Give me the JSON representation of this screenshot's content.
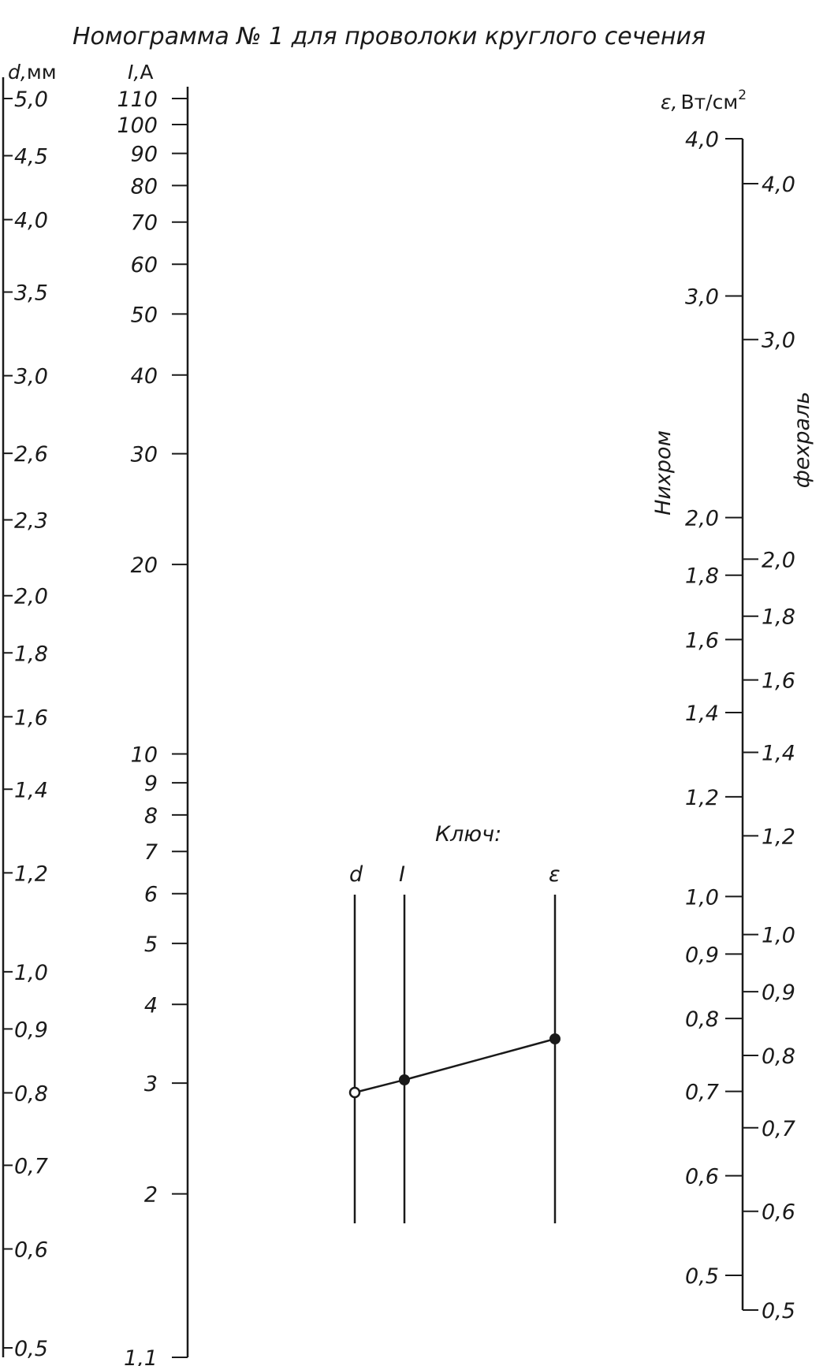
{
  "title": "Номограмма № 1 для проволоки круглого сечения",
  "axes": {
    "d": {
      "symbol": "d,",
      "unit": "мм",
      "ticks": [
        {
          "label": "5,0",
          "value": 5.0
        },
        {
          "label": "4,5",
          "value": 4.5
        },
        {
          "label": "4,0",
          "value": 4.0
        },
        {
          "label": "3,5",
          "value": 3.5
        },
        {
          "label": "3,0",
          "value": 3.0
        },
        {
          "label": "2,6",
          "value": 2.6
        },
        {
          "label": "2,3",
          "value": 2.3
        },
        {
          "label": "2,0",
          "value": 2.0
        },
        {
          "label": "1,8",
          "value": 1.8
        },
        {
          "label": "1,6",
          "value": 1.6
        },
        {
          "label": "1,4",
          "value": 1.4
        },
        {
          "label": "1,2",
          "value": 1.2
        },
        {
          "label": "1,0",
          "value": 1.0
        },
        {
          "label": "0,9",
          "value": 0.9
        },
        {
          "label": "0,8",
          "value": 0.8
        },
        {
          "label": "0,7",
          "value": 0.7
        },
        {
          "label": "0,6",
          "value": 0.6
        },
        {
          "label": "0,5",
          "value": 0.5
        }
      ]
    },
    "I": {
      "symbol": "I,",
      "unit": "А",
      "ticks": [
        {
          "label": "110",
          "value": 110
        },
        {
          "label": "100",
          "value": 100
        },
        {
          "label": "90",
          "value": 90
        },
        {
          "label": "80",
          "value": 80
        },
        {
          "label": "70",
          "value": 70
        },
        {
          "label": "60",
          "value": 60
        },
        {
          "label": "50",
          "value": 50
        },
        {
          "label": "40",
          "value": 40
        },
        {
          "label": "30",
          "value": 30
        },
        {
          "label": "20",
          "value": 20
        },
        {
          "label": "10",
          "value": 10
        },
        {
          "label": "9",
          "value": 9
        },
        {
          "label": "8",
          "value": 8
        },
        {
          "label": "7",
          "value": 7
        },
        {
          "label": "6",
          "value": 6
        },
        {
          "label": "5",
          "value": 5
        },
        {
          "label": "4",
          "value": 4
        },
        {
          "label": "3",
          "value": 3
        },
        {
          "label": "2",
          "value": 2
        },
        {
          "label": "1,1",
          "value": 1.1
        }
      ]
    },
    "eps": {
      "symbol": "ε,",
      "unit": "Вт/см",
      "unit_sup": "2",
      "nichrome": {
        "name": "Нихром",
        "ticks": [
          {
            "label": "4,0",
            "value": 4.0
          },
          {
            "label": "3,0",
            "value": 3.0
          },
          {
            "label": "2,0",
            "value": 2.0
          },
          {
            "label": "1,8",
            "value": 1.8
          },
          {
            "label": "1,6",
            "value": 1.6
          },
          {
            "label": "1,4",
            "value": 1.4
          },
          {
            "label": "1,2",
            "value": 1.2
          },
          {
            "label": "1,0",
            "value": 1.0
          },
          {
            "label": "0,9",
            "value": 0.9
          },
          {
            "label": "0,8",
            "value": 0.8
          },
          {
            "label": "0,7",
            "value": 0.7
          },
          {
            "label": "0,6",
            "value": 0.6
          },
          {
            "label": "0,5",
            "value": 0.5
          }
        ]
      },
      "fechral": {
        "name": "фехраль",
        "ticks": [
          {
            "label": "4,0",
            "value": 4.0
          },
          {
            "label": "3,0",
            "value": 3.0
          },
          {
            "label": "2,0",
            "value": 2.0
          },
          {
            "label": "1,8",
            "value": 1.8
          },
          {
            "label": "1,6",
            "value": 1.6
          },
          {
            "label": "1,4",
            "value": 1.4
          },
          {
            "label": "1,2",
            "value": 1.2
          },
          {
            "label": "1,0",
            "value": 1.0
          },
          {
            "label": "0,9",
            "value": 0.9
          },
          {
            "label": "0,8",
            "value": 0.8
          },
          {
            "label": "0,7",
            "value": 0.7
          },
          {
            "label": "0,6",
            "value": 0.6
          },
          {
            "label": "0,5",
            "value": 0.5
          }
        ]
      }
    }
  },
  "key": {
    "title": "Ключ:",
    "labels": [
      "d",
      "I",
      "ε"
    ]
  }
}
